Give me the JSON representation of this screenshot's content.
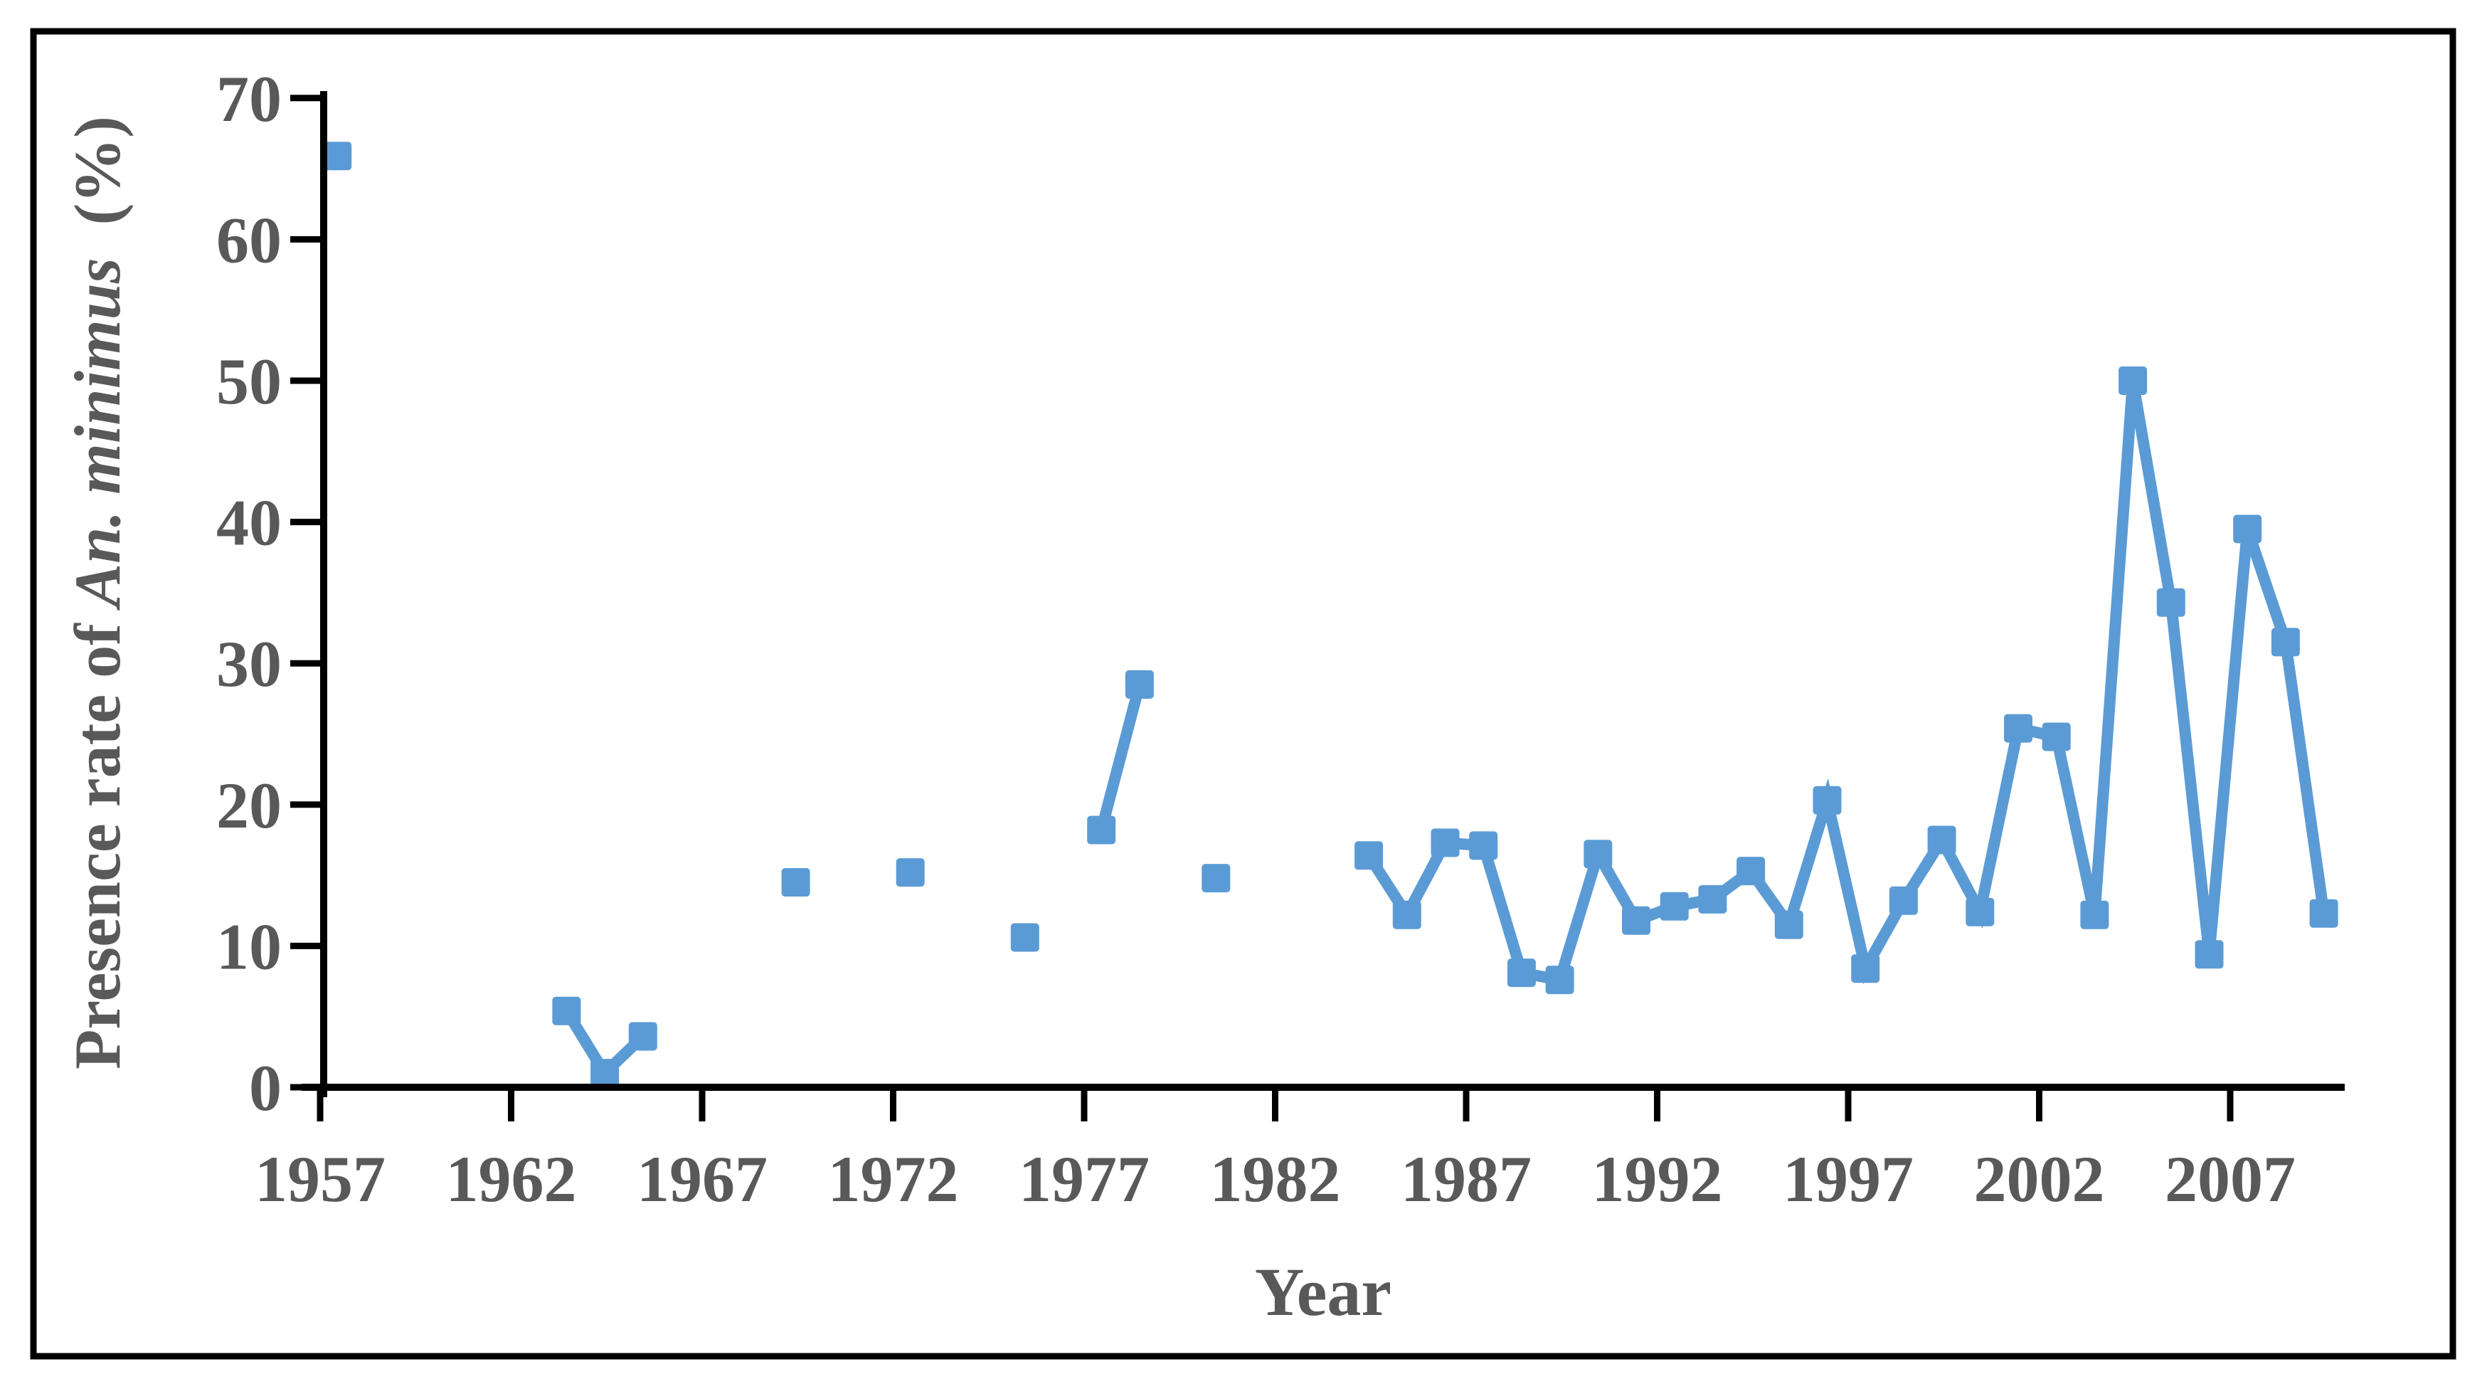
{
  "figure": {
    "x_axis_title": "Year",
    "y_axis_title": {
      "prefix": "Presence rate of ",
      "species": "An. minimus",
      "suffix": "  (%)"
    }
  },
  "colors": {
    "series": "#5B9BD5",
    "axis": "#000000",
    "labels": "#595959",
    "background": "#FFFFFF",
    "border": "#000000"
  },
  "chart_data": {
    "type": "line",
    "title": "",
    "xlabel": "Year",
    "ylabel": "Presence rate of An. minimus (%)",
    "x_ticks": [
      1957,
      1962,
      1967,
      1972,
      1977,
      1982,
      1987,
      1992,
      1997,
      2002,
      2007
    ],
    "y_ticks": [
      0,
      10,
      20,
      30,
      40,
      50,
      60,
      70
    ],
    "xlim": [
      1956,
      2010.5
    ],
    "ylim": [
      0,
      70
    ],
    "grid": false,
    "legend_position": "none",
    "marker": "square",
    "series": [
      {
        "name": "Presence rate of An. minimus",
        "segments": [
          [
            [
              1957,
              65.9
            ]
          ],
          [
            [
              1963,
              5.4
            ],
            [
              1964,
              1.0
            ],
            [
              1965,
              3.6
            ]
          ],
          [
            [
              1969,
              14.5
            ]
          ],
          [
            [
              1972,
              15.2
            ]
          ],
          [
            [
              1975,
              10.6
            ]
          ],
          [
            [
              1977,
              18.2
            ],
            [
              1978,
              28.5
            ]
          ],
          [
            [
              1980,
              14.8
            ]
          ],
          [
            [
              1984,
              16.4
            ],
            [
              1985,
              12.2
            ],
            [
              1986,
              17.3
            ],
            [
              1987,
              17.1
            ],
            [
              1988,
              8.1
            ],
            [
              1989,
              7.6
            ],
            [
              1990,
              16.5
            ],
            [
              1991,
              11.8
            ],
            [
              1992,
              12.8
            ],
            [
              1993,
              13.3
            ],
            [
              1994,
              15.3
            ],
            [
              1995,
              11.5
            ],
            [
              1996,
              20.3
            ],
            [
              1997,
              8.4
            ],
            [
              1998,
              13.2
            ],
            [
              1999,
              17.5
            ],
            [
              2000,
              12.4
            ],
            [
              2001,
              25.4
            ],
            [
              2002,
              24.8
            ],
            [
              2003,
              12.2
            ],
            [
              2004,
              50.0
            ],
            [
              2005,
              34.3
            ],
            [
              2006,
              9.4
            ],
            [
              2007,
              39.5
            ],
            [
              2008,
              31.5
            ],
            [
              2009,
              12.3
            ]
          ]
        ]
      }
    ]
  }
}
